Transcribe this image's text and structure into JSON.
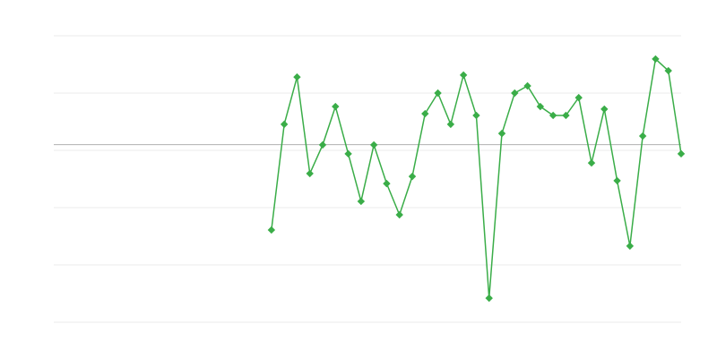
{
  "chart_data": {
    "type": "line",
    "title": "",
    "xlabel": "",
    "ylabel": "",
    "x_count": 50,
    "ylim": [
      0,
      100
    ],
    "grid_values": [
      0,
      20,
      40,
      60,
      80,
      100
    ],
    "reference_line": 62,
    "grid": true,
    "legend": "none",
    "series": [
      {
        "color": "#3aad48",
        "marker": "diamond",
        "values": [
          null,
          null,
          null,
          null,
          null,
          null,
          null,
          null,
          null,
          null,
          null,
          null,
          null,
          null,
          null,
          null,
          null,
          32.2,
          69.1,
          85.6,
          51.9,
          61.9,
          75.3,
          58.8,
          42.2,
          61.9,
          48.4,
          37.5,
          50.9,
          72.8,
          80.0,
          69.1,
          86.3,
          72.2,
          8.4,
          65.9,
          80.0,
          82.5,
          75.3,
          72.2,
          72.2,
          78.4,
          55.6,
          74.4,
          49.4,
          26.6,
          65.0,
          91.9,
          87.8,
          58.8
        ]
      }
    ]
  }
}
